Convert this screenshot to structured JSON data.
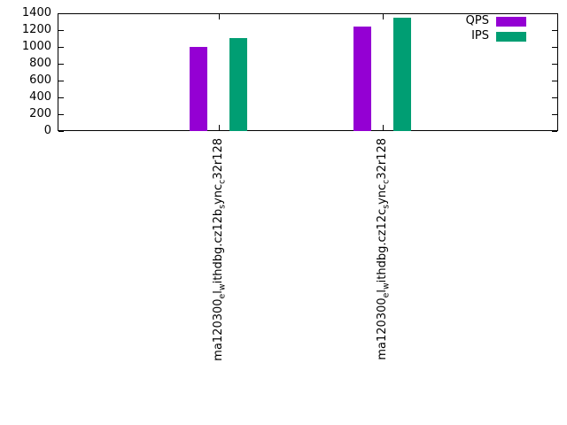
{
  "chart_data": {
    "type": "bar",
    "title": "",
    "xlabel": "",
    "ylabel": "",
    "categories": [
      "ma120300_el_withdbg.cz12b_sync_c32r128",
      "ma120300_el_withdbg.cz12c_sync_c32r128"
    ],
    "series": [
      {
        "name": "QPS",
        "color": "#9400d3",
        "values": [
          1000,
          1240
        ]
      },
      {
        "name": "IPS",
        "color": "#009e73",
        "values": [
          1110,
          1350
        ]
      }
    ],
    "ylim": [
      0,
      1400
    ],
    "yticks": [
      0,
      200,
      400,
      600,
      800,
      1000,
      1200,
      1400
    ],
    "grid": false,
    "legend_position": "top-right"
  }
}
